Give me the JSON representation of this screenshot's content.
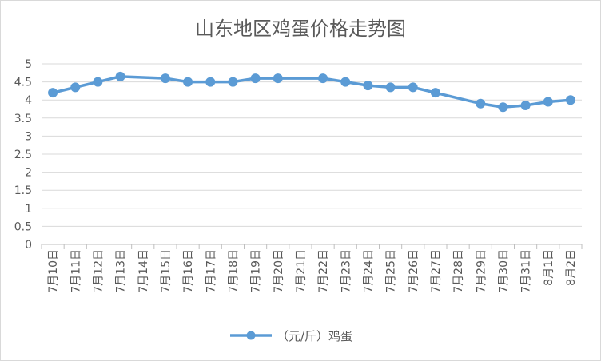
{
  "chart_data": {
    "type": "line",
    "title": "山东地区鸡蛋价格走势图",
    "xlabel": "",
    "ylabel": "",
    "categories": [
      "7月10日",
      "7月11日",
      "7月12日",
      "7月13日",
      "7月14日",
      "7月15日",
      "7月16日",
      "7月17日",
      "7月18日",
      "7月19日",
      "7月20日",
      "7月21日",
      "7月22日",
      "7月23日",
      "7月24日",
      "7月25日",
      "7月26日",
      "7月27日",
      "7月28日",
      "7月29日",
      "7月30日",
      "7月31日",
      "8月1日",
      "8月2日"
    ],
    "y_ticks": [
      "0",
      "0.5",
      "1",
      "1.5",
      "2",
      "2.5",
      "3",
      "3.5",
      "4",
      "4.5",
      "5"
    ],
    "ylim": [
      0,
      5
    ],
    "grid": true,
    "legend_position": "bottom",
    "series": [
      {
        "name": "（元/斤）鸡蛋",
        "color": "#5b9bd5",
        "values": [
          4.2,
          4.35,
          4.5,
          4.65,
          null,
          4.6,
          4.5,
          4.5,
          4.5,
          4.6,
          4.6,
          null,
          4.6,
          4.5,
          4.4,
          4.35,
          4.35,
          4.2,
          null,
          3.9,
          3.8,
          3.85,
          3.95,
          4.0
        ]
      }
    ]
  }
}
